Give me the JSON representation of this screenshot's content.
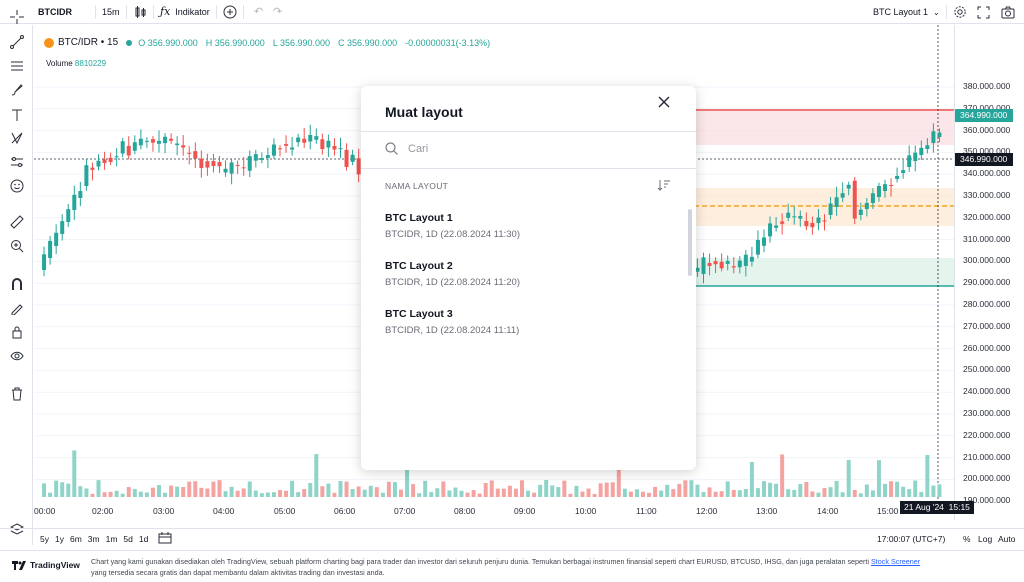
{
  "toolbar": {
    "symbol": "BTCIDR",
    "interval": "15m",
    "indicators_label": "Indikator",
    "layout_name": "BTC Layout 1"
  },
  "legend": {
    "title": "BTC/IDR • 15",
    "open": "O 356.990.000",
    "high": "H 356.990.000",
    "low": "L 356.990.000",
    "close": "C 356.990.000",
    "change": "-0.00000031(-3.13%)",
    "volume_label": "Volume",
    "volume_value": "8810229"
  },
  "price_scale": {
    "ticks": [
      "380.000.000",
      "370.000.000",
      "360.000.000",
      "350.000.000",
      "340.000.000",
      "330.000.000",
      "320.000.000",
      "310.000.000",
      "300.000.000",
      "290.000.000",
      "280.000.000",
      "270.000.000",
      "260.000.000",
      "250.000.000",
      "240.000.000",
      "230.000.000",
      "220.000.000",
      "210.000.000",
      "200.000.000",
      "190.000.000"
    ],
    "last_price": "364.990.000",
    "crosshair_price": "346.990.000"
  },
  "time_axis": {
    "ticks": [
      "00:00",
      "02:00",
      "03:00",
      "04:00",
      "05:00",
      "06:00",
      "07:00",
      "08:00",
      "09:00",
      "10:00",
      "11:00",
      "12:00",
      "13:00",
      "14:00",
      "15:00"
    ],
    "crosshair_time": "21 Aug '24  15:15"
  },
  "bottom_bar": {
    "ranges": [
      "5y",
      "1y",
      "6m",
      "3m",
      "1m",
      "5d",
      "1d"
    ],
    "clock": "17:00:07 (UTC+7)",
    "percent": "%",
    "log": "Log",
    "auto": "Auto"
  },
  "footer": {
    "brand": "TradingView",
    "text": "Chart yang kami gunakan disediakan oleh TradingView, sebuah platform charting bagi para trader dan investor dari seluruh penjuru dunia. Temukan berbagai instrumen finansial seperti chart EURUSD, BTCUSD, IHSG, dan juga peralatan seperti",
    "link": "Stock Screener",
    "text2": "yang tersedia secara gratis dan dapat membantu dalam aktivitas trading dan investasi anda."
  },
  "modal": {
    "title": "Muat layout",
    "search_placeholder": "Cari",
    "list_header": "NAMA LAYOUT",
    "layouts": [
      {
        "name": "BTC Layout 1",
        "meta": "BTCIDR, 1D (22.08.2024 11:30)"
      },
      {
        "name": "BTC Layout 2",
        "meta": "BTCIDR, 1D (22.08.2024 11:20)"
      },
      {
        "name": "BTC Layout 3",
        "meta": "BTCIDR, 1D (22.08.2024 11:11)"
      }
    ]
  },
  "colors": {
    "up": "#26a69a",
    "down": "#ef5350",
    "accent": "#2962ff"
  }
}
